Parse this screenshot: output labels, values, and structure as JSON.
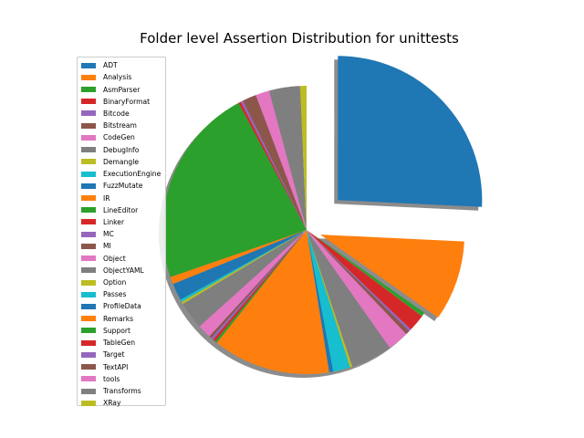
{
  "chart_data": {
    "type": "pie",
    "title": "Folder level Assertion Distribution for unittests",
    "start_angle_deg": 90,
    "counterclock": false,
    "shadow": true,
    "legend_position": "upper-left",
    "categories": [
      "ADT",
      "Analysis",
      "AsmParser",
      "BinaryFormat",
      "Bitcode",
      "Bitstream",
      "CodeGen",
      "DebugInfo",
      "Demangle",
      "ExecutionEngine",
      "FuzzMutate",
      "IR",
      "LineEditor",
      "Linker",
      "MC",
      "MI",
      "Object",
      "ObjectYAML",
      "Option",
      "Passes",
      "ProfileData",
      "Remarks",
      "Support",
      "TableGen",
      "Target",
      "TextAPI",
      "tools",
      "Transforms",
      "XRay"
    ],
    "values": [
      28.3,
      9.9,
      0.5,
      2.1,
      0.3,
      0.5,
      2.6,
      5.1,
      0.3,
      2.1,
      0.5,
      14.5,
      0.3,
      0.3,
      0.3,
      0.3,
      1.7,
      3.4,
      0.3,
      0.3,
      2.1,
      0.9,
      24.7,
      0.3,
      0.3,
      1.7,
      1.7,
      3.8,
      0.8
    ],
    "explode": [
      0.3,
      0.1,
      0,
      0,
      0,
      0,
      0,
      0,
      0,
      0,
      0,
      0,
      0,
      0,
      0,
      0,
      0,
      0,
      0,
      0,
      0,
      0,
      0,
      0,
      0,
      0,
      0,
      0,
      0
    ],
    "colors": [
      "#1f77b4",
      "#ff7f0e",
      "#2ca02c",
      "#d62728",
      "#9467bd",
      "#8c564b",
      "#e377c2",
      "#7f7f7f",
      "#bcbd22",
      "#17becf",
      "#1f77b4",
      "#ff7f0e",
      "#2ca02c",
      "#d62728",
      "#9467bd",
      "#8c564b",
      "#e377c2",
      "#7f7f7f",
      "#bcbd22",
      "#17becf",
      "#1f77b4",
      "#ff7f0e",
      "#2ca02c",
      "#d62728",
      "#9467bd",
      "#8c564b",
      "#e377c2",
      "#7f7f7f",
      "#bcbd22"
    ]
  }
}
